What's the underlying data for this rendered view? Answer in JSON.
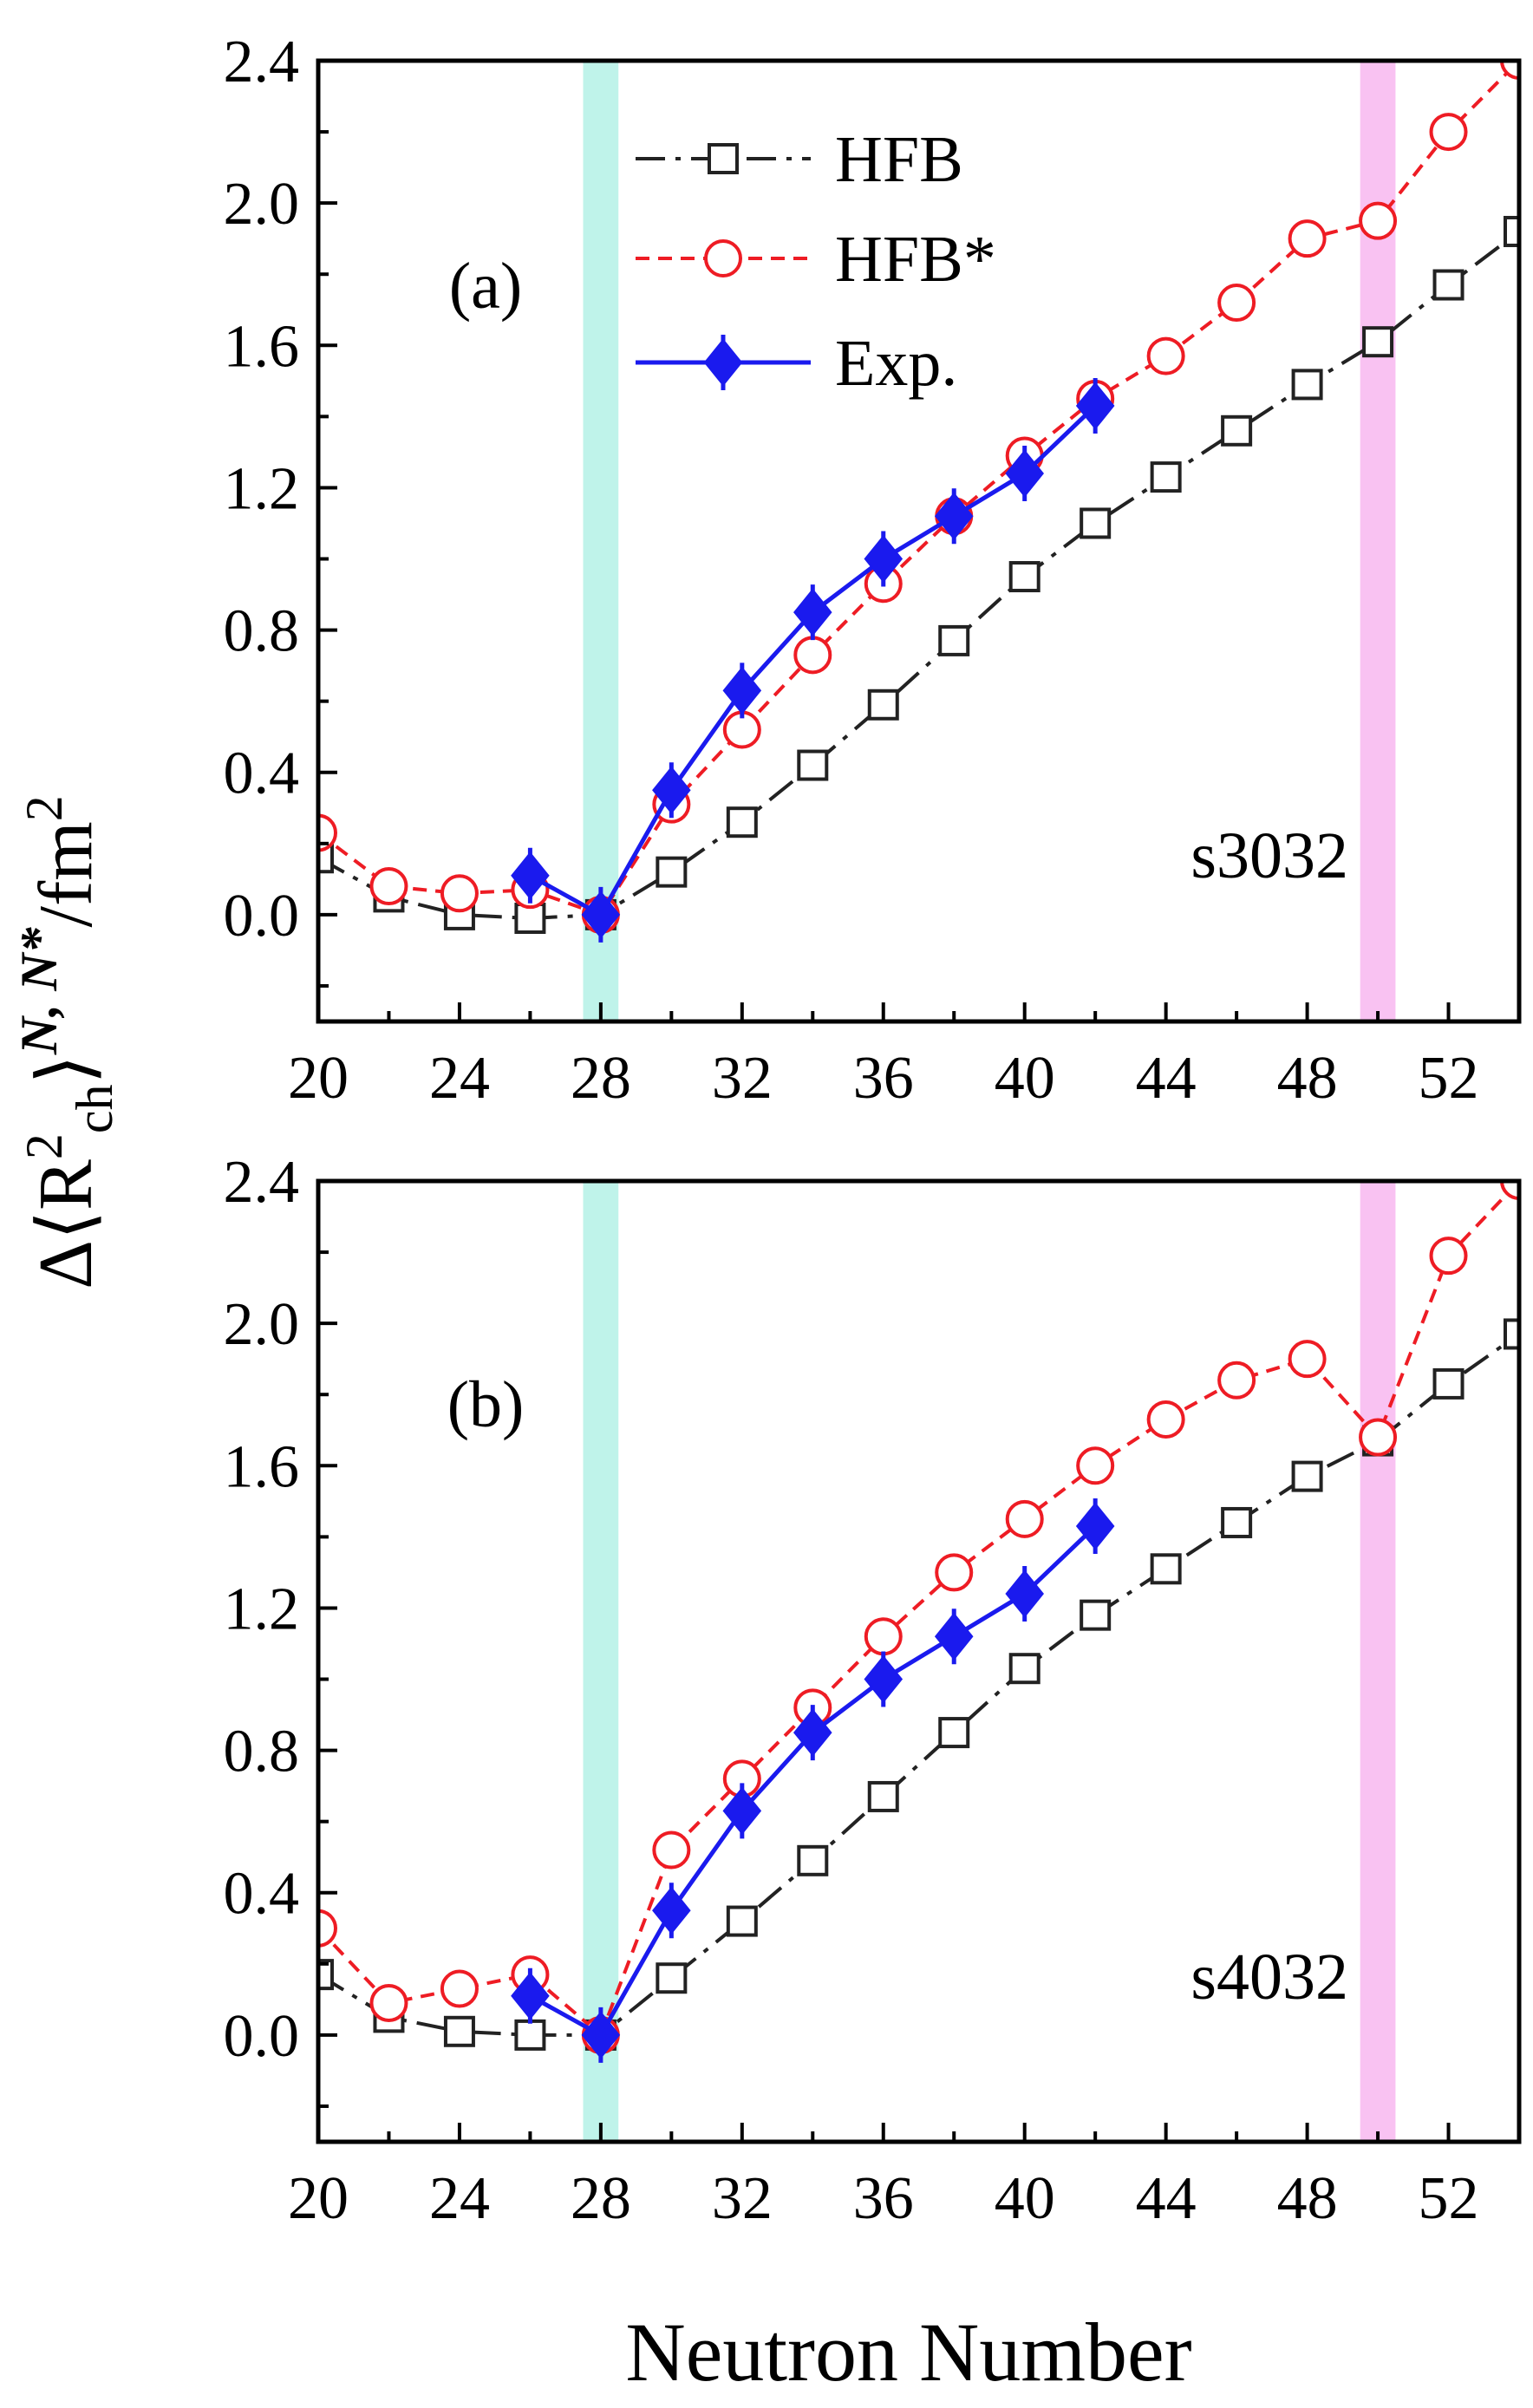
{
  "figure": {
    "ylabel": "Δ⟨R²ch⟩N, N*/fm²",
    "ylabel_parts": {
      "delta": "Δ⟨R",
      "sup2": "2",
      "sub": "ch",
      "close": "⟩",
      "sup": "N, N*",
      "unit": "/fm",
      "unit_sup": "2"
    },
    "xlabel": "Neutron Number"
  },
  "chart_data": [
    {
      "type": "line",
      "panel_label": "(a)",
      "annotation": "s3032",
      "xlim": [
        20,
        54
      ],
      "ylim": [
        -0.3,
        2.4
      ],
      "x_ticks": [
        20,
        24,
        28,
        32,
        36,
        40,
        44,
        48,
        52
      ],
      "y_ticks": [
        "0.0",
        "0.4",
        "0.8",
        "1.2",
        "1.6",
        "2.0",
        "2.4"
      ],
      "bands": [
        {
          "x": [
            27.5,
            28.5
          ],
          "color": "#bff3ea"
        },
        {
          "x": [
            49.5,
            50.5
          ],
          "color": "#f9c2f2"
        }
      ],
      "legend": {
        "position": "top-left",
        "entries": [
          "HFB",
          "HFB*",
          "Exp."
        ]
      },
      "series": [
        {
          "name": "HFB",
          "style": "dashdot-square",
          "color": "#222222",
          "x": [
            20,
            22,
            24,
            26,
            28,
            30,
            32,
            34,
            36,
            38,
            40,
            42,
            44,
            46,
            48,
            50,
            52,
            54
          ],
          "y": [
            0.16,
            0.05,
            0.0,
            -0.01,
            0.0,
            0.12,
            0.26,
            0.42,
            0.59,
            0.77,
            0.95,
            1.1,
            1.23,
            1.36,
            1.49,
            1.61,
            1.77,
            1.92
          ]
        },
        {
          "name": "HFB*",
          "style": "dash-circle",
          "color": "#ee1c24",
          "x": [
            20,
            22,
            24,
            26,
            28,
            30,
            32,
            34,
            36,
            38,
            40,
            42,
            44,
            46,
            48,
            50,
            52,
            54
          ],
          "y": [
            0.23,
            0.08,
            0.06,
            0.07,
            0.0,
            0.31,
            0.52,
            0.73,
            0.93,
            1.12,
            1.29,
            1.45,
            1.57,
            1.72,
            1.9,
            1.95,
            2.2,
            2.4
          ]
        },
        {
          "name": "Exp.",
          "style": "solid-diamond",
          "color": "#1a1aee",
          "x": [
            26,
            28,
            30,
            32,
            34,
            36,
            38,
            40,
            42
          ],
          "y": [
            0.11,
            0.0,
            0.35,
            0.63,
            0.85,
            1.0,
            1.12,
            1.24,
            1.43
          ]
        }
      ]
    },
    {
      "type": "line",
      "panel_label": "(b)",
      "annotation": "s4032",
      "xlim": [
        20,
        54
      ],
      "ylim": [
        -0.3,
        2.4
      ],
      "x_ticks": [
        20,
        24,
        28,
        32,
        36,
        40,
        44,
        48,
        52
      ],
      "y_ticks": [
        "0.0",
        "0.4",
        "0.8",
        "1.2",
        "1.6",
        "2.0",
        "2.4"
      ],
      "bands": [
        {
          "x": [
            27.5,
            28.5
          ],
          "color": "#bff3ea"
        },
        {
          "x": [
            49.5,
            50.5
          ],
          "color": "#f9c2f2"
        }
      ],
      "series": [
        {
          "name": "HFB",
          "style": "dashdot-square",
          "color": "#222222",
          "x": [
            20,
            22,
            24,
            26,
            28,
            30,
            32,
            34,
            36,
            38,
            40,
            42,
            44,
            46,
            48,
            50,
            52,
            54
          ],
          "y": [
            0.17,
            0.05,
            0.01,
            0.0,
            0.0,
            0.16,
            0.32,
            0.49,
            0.67,
            0.85,
            1.03,
            1.18,
            1.31,
            1.44,
            1.57,
            1.67,
            1.83,
            1.97
          ]
        },
        {
          "name": "HFB*",
          "style": "dash-circle",
          "color": "#ee1c24",
          "x": [
            20,
            22,
            24,
            26,
            28,
            30,
            32,
            34,
            36,
            38,
            40,
            42,
            44,
            46,
            48,
            50,
            52,
            54
          ],
          "y": [
            0.3,
            0.09,
            0.13,
            0.17,
            0.0,
            0.52,
            0.72,
            0.92,
            1.12,
            1.3,
            1.45,
            1.6,
            1.73,
            1.84,
            1.9,
            1.68,
            2.19,
            2.4
          ]
        },
        {
          "name": "Exp.",
          "style": "solid-diamond",
          "color": "#1a1aee",
          "x": [
            26,
            28,
            30,
            32,
            34,
            36,
            38,
            40,
            42
          ],
          "y": [
            0.11,
            0.0,
            0.35,
            0.63,
            0.85,
            1.0,
            1.12,
            1.24,
            1.43
          ]
        }
      ]
    }
  ]
}
